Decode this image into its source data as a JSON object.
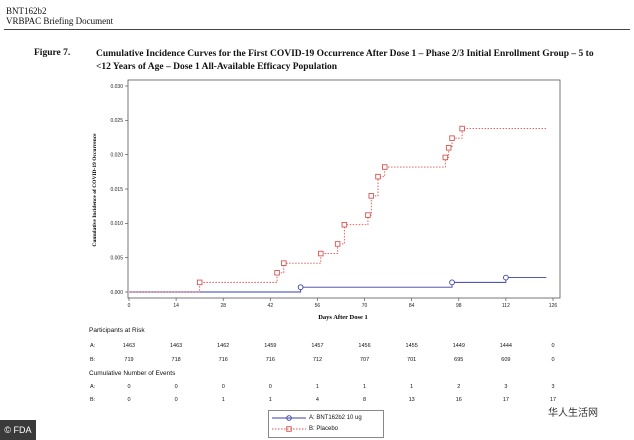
{
  "header": {
    "code": "BNT162b2",
    "subtitle": "VRBPAC Briefing Document"
  },
  "figure": {
    "label": "Figure 7.",
    "title": "Cumulative Incidence Curves for the First COVID-19 Occurrence After Dose 1 – Phase 2/3 Initial Enrollment Group – 5 to <12 Years of Age – Dose 1 All-Available Efficacy Population"
  },
  "chart_data": {
    "type": "line",
    "step": true,
    "xlabel": "Days After Dose 1",
    "ylabel": "Cumulative Incidence of COVID-19 Occurrence",
    "xlim": [
      0,
      126
    ],
    "ylim": [
      0,
      0.03
    ],
    "x_ticks": [
      0,
      14,
      28,
      42,
      56,
      70,
      84,
      98,
      112,
      126
    ],
    "y_ticks": [
      0.0,
      0.005,
      0.01,
      0.015,
      0.02,
      0.025,
      0.03
    ],
    "y_tick_labels": [
      "0.000",
      "0.005",
      "0.010",
      "0.015",
      "0.020",
      "0.025",
      "0.030"
    ],
    "grid": false,
    "legend_position": "bottom",
    "series": [
      {
        "name": "A: BNT162b2 10 ug",
        "color": "#3b3fa8",
        "line": "solid",
        "points": [
          [
            0,
            0.0
          ],
          [
            51,
            0.0007
          ],
          [
            96,
            0.0014
          ],
          [
            112,
            0.0021
          ],
          [
            124,
            0.0021
          ]
        ],
        "markers": [
          [
            51,
            0.0007
          ],
          [
            96,
            0.0014
          ],
          [
            112,
            0.0021
          ]
        ]
      },
      {
        "name": "B: Placebo",
        "color": "#d9534f",
        "line": "dotted",
        "points": [
          [
            0,
            0.0
          ],
          [
            21,
            0.0014
          ],
          [
            44,
            0.0028
          ],
          [
            46,
            0.0042
          ],
          [
            57,
            0.0056
          ],
          [
            62,
            0.007
          ],
          [
            64,
            0.0098
          ],
          [
            71,
            0.0112
          ],
          [
            72,
            0.014
          ],
          [
            74,
            0.0168
          ],
          [
            76,
            0.0182
          ],
          [
            94,
            0.0196
          ],
          [
            95,
            0.021
          ],
          [
            96,
            0.0224
          ],
          [
            99,
            0.0238
          ],
          [
            124,
            0.0238
          ]
        ],
        "markers": [
          [
            21,
            0.0014
          ],
          [
            44,
            0.0028
          ],
          [
            46,
            0.0042
          ],
          [
            57,
            0.0056
          ],
          [
            62,
            0.007
          ],
          [
            64,
            0.0098
          ],
          [
            71,
            0.0112
          ],
          [
            72,
            0.014
          ],
          [
            74,
            0.0168
          ],
          [
            76,
            0.0182
          ],
          [
            94,
            0.0196
          ],
          [
            95,
            0.021
          ],
          [
            96,
            0.0224
          ],
          [
            99,
            0.0238
          ]
        ]
      }
    ]
  },
  "risk_table": {
    "at_risk_title": "Participants at Risk",
    "events_title": "Cumulative Number of Events",
    "row_a": "A:",
    "row_b": "B:",
    "at_risk_a": [
      "1463",
      "1463",
      "1462",
      "1459",
      "1457",
      "1456",
      "1455",
      "1449",
      "1444",
      "0"
    ],
    "at_risk_b": [
      "719",
      "718",
      "716",
      "716",
      "712",
      "707",
      "701",
      "695",
      "609",
      "0"
    ],
    "events_a": [
      "0",
      "0",
      "0",
      "0",
      "1",
      "1",
      "1",
      "2",
      "3",
      "3"
    ],
    "events_b": [
      "0",
      "0",
      "1",
      "1",
      "4",
      "8",
      "13",
      "16",
      "17",
      "17"
    ]
  },
  "legend": {
    "a": "A: BNT162b2 10 ug",
    "b": "B: Placebo"
  },
  "logo": {
    "text": "© FDA"
  },
  "watermark": {
    "text": "华人生活网"
  }
}
